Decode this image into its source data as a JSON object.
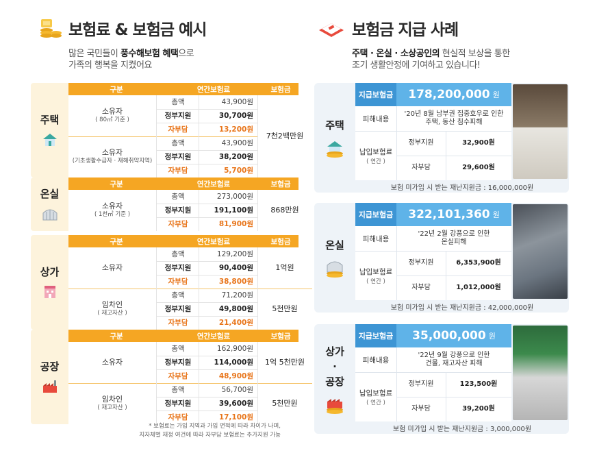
{
  "left": {
    "title": "보험료 & 보험금 예시",
    "subtitle_pre": "많은 국민들이 ",
    "subtitle_bold": "풍수해보험 혜택",
    "subtitle_post": "으로",
    "subtitle_line2": "가족의 행복을 지켰어요",
    "headers": {
      "col1": "구분",
      "col2": "연간보험료",
      "col3": "보험금"
    },
    "labels": {
      "total": "총액",
      "gov": "정부지원",
      "self": "자부담"
    },
    "tables": [
      {
        "category": "주택",
        "icon": "house-icon",
        "groups": [
          {
            "owner": "소유자",
            "note": "( 80㎡ 기준 )",
            "total": "43,900원",
            "gov": "30,700원",
            "self": "13,200원"
          },
          {
            "owner": "소유자",
            "note": "(기초생활수급자 · 재해취약지역)",
            "total": "43,900원",
            "gov": "38,200원",
            "self": "5,700원"
          }
        ],
        "payouts": [
          "7천2백만원"
        ]
      },
      {
        "category": "온실",
        "icon": "greenhouse-icon",
        "groups": [
          {
            "owner": "소유자",
            "note": "( 1천㎡ 기준 )",
            "total": "273,000원",
            "gov": "191,100원",
            "self": "81,900원"
          }
        ],
        "payouts": [
          "868만원"
        ]
      },
      {
        "category": "상가",
        "icon": "shop-building-icon",
        "groups": [
          {
            "owner": "소유자",
            "note": "",
            "total": "129,200원",
            "gov": "90,400원",
            "self": "38,800원"
          },
          {
            "owner": "임차인",
            "note": "( 재고자산 )",
            "total": "71,200원",
            "gov": "49,800원",
            "self": "21,400원"
          }
        ],
        "payouts": [
          "1억원",
          "5천만원"
        ]
      },
      {
        "category": "공장",
        "icon": "factory-icon",
        "groups": [
          {
            "owner": "소유자",
            "note": "",
            "total": "162,900원",
            "gov": "114,000원",
            "self": "48,900원"
          },
          {
            "owner": "임차인",
            "note": "( 재고자산 )",
            "total": "56,700원",
            "gov": "39,600원",
            "self": "17,100원"
          }
        ],
        "payouts": [
          "1억 5천만원",
          "5천만원"
        ]
      }
    ],
    "footnote_line1": "* 보험료는 가입 지역과 가입 면적에 따라 차이가 나며,",
    "footnote_line2": "지자체별 재정 여건에 따라 자부담 보험료는 추가지원 가능"
  },
  "right": {
    "title": "보험금 지급 사례",
    "subtitle_bold": "주택 · 온실 · 소상공인의",
    "subtitle_post": " 현실적 보상을 통한",
    "subtitle_line2": "조기 생활안정에 기여하고 있습니다!",
    "labels": {
      "payout": "지급보험금",
      "damage": "피해내용",
      "premium": "납입보험료",
      "premium_note": "( 연간 )",
      "gov": "정부지원",
      "self": "자부담"
    },
    "cases": [
      {
        "category": "주택",
        "icon": "house-coins-icon",
        "amount": "178,200,000",
        "unit": "원",
        "damage_line1": "'20년 8월 남부권 집중호우로 인한",
        "damage_line2": "주택, 동산 침수피해",
        "gov": "32,900원",
        "self": "29,600원",
        "footer": "보험 미가입 시 받는 재난지원금 : 16,000,000원"
      },
      {
        "category": "온실",
        "icon": "greenhouse-coins-icon",
        "amount": "322,101,360",
        "unit": "원",
        "damage_line1": "'22년 2월 강풍으로 인한",
        "damage_line2": "온실피해",
        "gov": "6,353,900원",
        "self": "1,012,000원",
        "footer": "보험 미가입 시 받는 재난지원금 : 42,000,000원"
      },
      {
        "category": "상가\n·\n공장",
        "category_lines": [
          "상가",
          "·",
          "공장"
        ],
        "icon": "factory-coins-icon",
        "amount": "35,000,000",
        "unit": "원",
        "damage_line1": "'22년 9월 강풍으로 인한",
        "damage_line2": "건물, 재고자산 피해",
        "gov": "123,500원",
        "self": "39,200원",
        "footer": "보험 미가입 시 받는 재난지원금 : 3,000,000원"
      }
    ]
  },
  "colors": {
    "orange": "#f5a623",
    "orange_text": "#e8751a",
    "blue": "#5fb3e8",
    "blue_dark": "#3d95d4",
    "cream": "#fdf3dc",
    "light_blue": "#eef3f8"
  }
}
